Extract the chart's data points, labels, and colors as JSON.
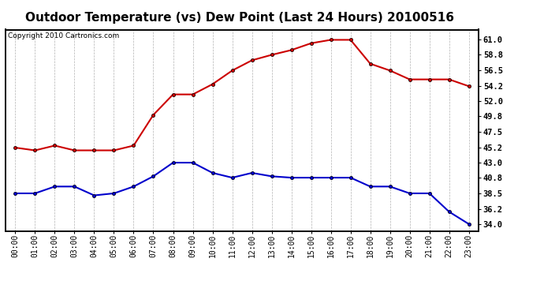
{
  "title": "Outdoor Temperature (vs) Dew Point (Last 24 Hours) 20100516",
  "copyright_text": "Copyright 2010 Cartronics.com",
  "x_labels": [
    "00:00",
    "01:00",
    "02:00",
    "03:00",
    "04:00",
    "05:00",
    "06:00",
    "07:00",
    "08:00",
    "09:00",
    "10:00",
    "11:00",
    "12:00",
    "13:00",
    "14:00",
    "15:00",
    "16:00",
    "17:00",
    "18:00",
    "19:00",
    "20:00",
    "21:00",
    "22:00",
    "23:00"
  ],
  "temp_data": [
    45.2,
    44.8,
    45.5,
    44.8,
    44.8,
    44.8,
    45.5,
    50.0,
    53.0,
    53.0,
    54.5,
    56.5,
    58.0,
    58.8,
    59.5,
    60.5,
    61.0,
    61.0,
    57.5,
    56.5,
    55.2,
    55.2,
    55.2,
    54.2
  ],
  "dew_data": [
    38.5,
    38.5,
    39.5,
    39.5,
    38.2,
    38.5,
    39.5,
    41.0,
    43.0,
    43.0,
    41.5,
    40.8,
    41.5,
    41.0,
    40.8,
    40.8,
    40.8,
    40.8,
    39.5,
    39.5,
    38.5,
    38.5,
    35.8,
    34.0
  ],
  "temp_color": "#cc0000",
  "dew_color": "#0000cc",
  "ylim": [
    33.0,
    62.5
  ],
  "yticks_right": [
    34.0,
    36.2,
    38.5,
    40.8,
    43.0,
    45.2,
    47.5,
    49.8,
    52.0,
    54.2,
    56.5,
    58.8,
    61.0
  ],
  "bg_color": "#ffffff",
  "plot_bg_color": "#ffffff",
  "grid_color": "#aaaaaa",
  "title_fontsize": 11,
  "copyright_fontsize": 6.5,
  "marker": "o",
  "marker_size": 3,
  "line_width": 1.5
}
